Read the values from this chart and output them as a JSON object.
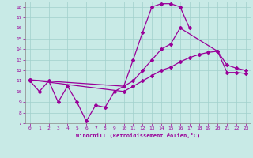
{
  "xlabel": "Windchill (Refroidissement éolien,°C)",
  "bg_color": "#c8eae6",
  "line_color": "#990099",
  "grid_color": "#a0d0cc",
  "xlim": [
    -0.5,
    23.5
  ],
  "ylim": [
    7,
    18.5
  ],
  "yticks": [
    7,
    8,
    9,
    10,
    11,
    12,
    13,
    14,
    15,
    16,
    17,
    18
  ],
  "xticks": [
    0,
    1,
    2,
    3,
    4,
    5,
    6,
    7,
    8,
    9,
    10,
    11,
    12,
    13,
    14,
    15,
    16,
    17,
    18,
    19,
    20,
    21,
    22,
    23
  ],
  "series": [
    {
      "x": [
        0,
        1,
        2,
        3,
        4,
        5,
        6,
        7,
        8,
        9,
        10,
        11,
        12,
        13,
        14,
        15,
        16,
        17
      ],
      "y": [
        11.0,
        10.0,
        11.0,
        9.0,
        10.5,
        9.0,
        7.2,
        8.7,
        8.5,
        10.0,
        10.5,
        13.0,
        15.6,
        18.0,
        18.3,
        18.3,
        18.0,
        16.0
      ]
    },
    {
      "x": [
        0,
        10,
        11,
        12,
        13,
        14,
        15,
        16,
        20,
        21,
        22,
        23
      ],
      "y": [
        11.1,
        10.5,
        11.0,
        12.0,
        13.0,
        14.0,
        14.5,
        16.0,
        13.8,
        12.5,
        12.2,
        12.0
      ]
    },
    {
      "x": [
        0,
        10,
        11,
        12,
        13,
        14,
        15,
        16,
        17,
        18,
        19,
        20,
        21,
        22,
        23
      ],
      "y": [
        11.1,
        10.0,
        10.5,
        11.0,
        11.5,
        12.0,
        12.3,
        12.8,
        13.2,
        13.5,
        13.7,
        13.8,
        11.8,
        11.8,
        11.7
      ]
    }
  ]
}
